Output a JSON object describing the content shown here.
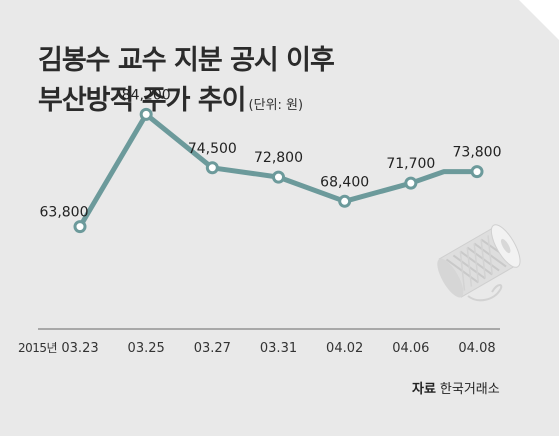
{
  "chart_data": {
    "type": "line",
    "title_line1": "김봉수 교수 지분 공시 이후",
    "title_line2": "부산방직 주가 추이",
    "unit": "(단위: 원)",
    "year_label": "2015년",
    "categories": [
      "03.23",
      "03.25",
      "03.27",
      "03.31",
      "04.02",
      "04.06",
      "04.08"
    ],
    "x": [
      "2015-03-23",
      "2015-03-25",
      "2015-03-27",
      "2015-03-31",
      "2015-04-02",
      "2015-04-06",
      "2015-04-08"
    ],
    "data_labels": [
      "63,800",
      "84,200",
      "74,500",
      "72,800",
      "68,400",
      "71,700",
      "73,800"
    ],
    "series": [
      {
        "x": [
          "2015-03-23",
          "2015-03-25",
          "2015-03-27",
          "2015-03-31",
          "2015-04-02",
          "2015-04-06",
          "2015-04-07",
          "2015-04-08"
        ],
        "values": [
          63800,
          84200,
          74500,
          72800,
          68400,
          71700,
          73800,
          73800
        ],
        "marked": [
          true,
          true,
          true,
          true,
          true,
          true,
          false,
          true
        ]
      }
    ],
    "ylim": [
      55000,
      95000
    ],
    "grid": false,
    "color": "#6c9a9b",
    "source_label": "자료",
    "source_name": "한국거래소"
  }
}
